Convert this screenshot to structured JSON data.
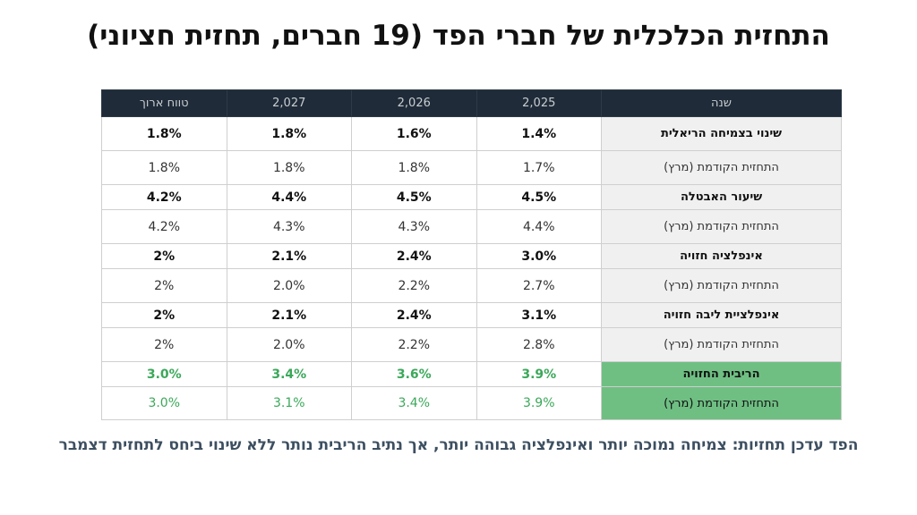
{
  "title": "התחזית הכלכלית של חברי הפד (19 חברים, תחזית חציוני)",
  "table": {
    "headers": [
      "שנה",
      "2,025",
      "2,026",
      "2,027",
      "טווח ארוך"
    ],
    "rows": [
      {
        "label": "שינוי בצמיחה הריאלית",
        "values": [
          "1.4%",
          "1.6%",
          "1.8%",
          "1.8%"
        ]
      },
      {
        "label": "התחזית הקודמת (מרץ)",
        "values": [
          "1.7%",
          "1.8%",
          "1.8%",
          "1.8%"
        ]
      },
      {
        "label": "שיעור האבטלה",
        "values": [
          "4.5%",
          "4.5%",
          "4.4%",
          "4.2%"
        ]
      },
      {
        "label": "התחזית הקודמת (מרץ)",
        "values": [
          "4.4%",
          "4.3%",
          "4.3%",
          "4.2%"
        ]
      },
      {
        "label": "אינפלציה חזויה",
        "values": [
          "3.0%",
          "2.4%",
          "2.1%",
          "2%"
        ]
      },
      {
        "label": "התחזית הקודמת (מרץ)",
        "values": [
          "2.7%",
          "2.2%",
          "2.0%",
          "2%"
        ]
      },
      {
        "label": "אינפלציית ליבה חזויה",
        "values": [
          "3.1%",
          "2.4%",
          "2.1%",
          "2%"
        ]
      },
      {
        "label": "התחזית הקודמת (מרץ)",
        "values": [
          "2.8%",
          "2.2%",
          "2.0%",
          "2%"
        ]
      },
      {
        "label": "הריבית החזויה",
        "values": [
          "3.9%",
          "3.6%",
          "3.4%",
          "3.0%"
        ]
      },
      {
        "label": "התחזית הקודמת (מרץ)",
        "values": [
          "3.9%",
          "3.4%",
          "3.1%",
          "3.0%"
        ]
      }
    ]
  },
  "footnote": "הפד עדכן תחזיות: צמיחה נמוכה יותר ואינפלציה גבוהה יותר, אך נתיב הריבית נותר ללא שינוי ביחס לתחזית דצמבר",
  "colors": {
    "header_bg": "#1f2b38",
    "rate_label_bg": "#6fbf83",
    "rate_text": "#3ba85a",
    "footnote_text": "#3d4f61"
  }
}
